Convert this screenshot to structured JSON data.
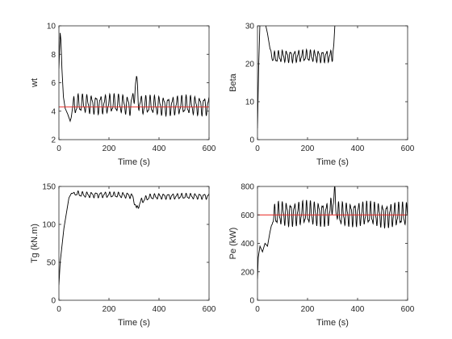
{
  "chart_data": [
    {
      "type": "line",
      "xlabel": "Time (s)",
      "ylabel": "wt",
      "xlim": [
        0,
        600
      ],
      "ylim": [
        2,
        10
      ],
      "xticks": [
        "0",
        "200",
        "400",
        "600"
      ],
      "yticks": [
        "2",
        "4",
        "6",
        "8",
        "10"
      ],
      "grid": false,
      "series": [
        {
          "color": "#000000",
          "style": "oscillating",
          "x": [
            0,
            5,
            8,
            12,
            18,
            25,
            35,
            45,
            55,
            65,
            80,
            100,
            150,
            200,
            250,
            290,
            300,
            310,
            320,
            330,
            400,
            500,
            600
          ],
          "y": [
            7,
            9.5,
            9,
            7,
            5,
            4.2,
            3.8,
            3.3,
            4.3,
            4.4,
            4.5,
            4.5,
            4.5,
            4.5,
            4.5,
            4.4,
            5.2,
            6.1,
            4.6,
            4.4,
            4.4,
            4.4,
            4.4
          ],
          "osc_from": 45,
          "osc_to": 600,
          "osc_amp": 0.55,
          "osc_period": 18
        },
        {
          "color": "#e8231e",
          "style": "line",
          "x": [
            0,
            600
          ],
          "y": [
            4.3,
            4.3
          ]
        }
      ]
    },
    {
      "type": "line",
      "xlabel": "Time (s)",
      "ylabel": "Beta",
      "xlim": [
        0,
        600
      ],
      "ylim": [
        0,
        30
      ],
      "xticks": [
        "0",
        "200",
        "400",
        "600"
      ],
      "yticks": [
        "0",
        "10",
        "20",
        "30"
      ],
      "grid": false,
      "series": [
        {
          "color": "#000000",
          "style": "oscillating",
          "x": [
            0,
            5,
            10,
            15,
            20,
            30,
            40,
            50,
            60,
            100,
            200,
            280,
            300,
            305,
            310,
            600
          ],
          "y": [
            3,
            20,
            31,
            31,
            31,
            31,
            28,
            24,
            21.5,
            22,
            22,
            22,
            22,
            25,
            31,
            31
          ],
          "osc_from": 50,
          "osc_to": 300,
          "osc_amp": 1.3,
          "osc_period": 16
        }
      ]
    },
    {
      "type": "line",
      "xlabel": "Time (s)",
      "ylabel": "Tg (kN.m)",
      "xlim": [
        0,
        600
      ],
      "ylim": [
        0,
        150
      ],
      "xticks": [
        "0",
        "200",
        "400",
        "600"
      ],
      "yticks": [
        "0",
        "50",
        "100",
        "150"
      ],
      "grid": false,
      "series": [
        {
          "color": "#000000",
          "style": "oscillating",
          "x": [
            0,
            5,
            20,
            40,
            50,
            60,
            100,
            200,
            290,
            300,
            310,
            320,
            330,
            360,
            400,
            500,
            600
          ],
          "y": [
            20,
            50,
            95,
            135,
            141,
            141,
            139,
            139,
            138,
            132,
            120,
            126,
            131,
            136,
            137,
            137,
            137
          ],
          "osc_from": 55,
          "osc_to": 600,
          "osc_amp": 3,
          "osc_period": 18
        }
      ]
    },
    {
      "type": "line",
      "xlabel": "Time (s)",
      "ylabel": "Pe (kW)",
      "xlim": [
        0,
        600
      ],
      "ylim": [
        0,
        800
      ],
      "xticks": [
        "0",
        "200",
        "400",
        "600"
      ],
      "yticks": [
        "0",
        "200",
        "400",
        "600",
        "800"
      ],
      "grid": false,
      "series": [
        {
          "color": "#000000",
          "style": "oscillating",
          "x": [
            0,
            3,
            10,
            20,
            30,
            40,
            50,
            60,
            70,
            100,
            200,
            290,
            300,
            310,
            320,
            400,
            500,
            600
          ],
          "y": [
            150,
            300,
            380,
            340,
            400,
            380,
            480,
            560,
            600,
            610,
            610,
            610,
            690,
            720,
            600,
            610,
            600,
            600
          ],
          "osc_from": 55,
          "osc_to": 600,
          "osc_amp": 70,
          "osc_period": 16
        },
        {
          "color": "#e8231e",
          "style": "line",
          "x": [
            0,
            600
          ],
          "y": [
            600,
            600
          ]
        }
      ]
    }
  ]
}
